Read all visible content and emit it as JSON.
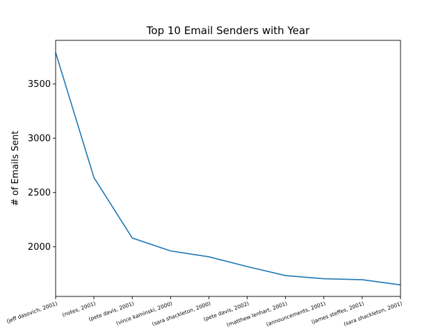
{
  "chart_data": {
    "type": "line",
    "title": "Top 10 Email Senders with Year",
    "xlabel": "",
    "ylabel": "# of Emails Sent",
    "categories": [
      "(jeff dasovich, 2001)",
      "(notes, 2001)",
      "(pete davis, 2001)",
      "(vince kaminski, 2000)",
      "(sara shackleton, 2000)",
      "(pete davis, 2002)",
      "(matthew lenhart, 2001)",
      "(announcements, 2001)",
      "(james steffes, 2001)",
      "(sara shackleton, 2001)"
    ],
    "series": [
      {
        "values": [
          3790,
          2638,
          2081,
          1962,
          1908,
          1818,
          1735,
          1706,
          1697,
          1649
        ]
      }
    ],
    "ylim": [
      1543,
      3902
    ],
    "yticks": [
      2000,
      2500,
      3000,
      3500
    ],
    "line_color": "#1f77b4",
    "grid": false,
    "legend": "none"
  }
}
